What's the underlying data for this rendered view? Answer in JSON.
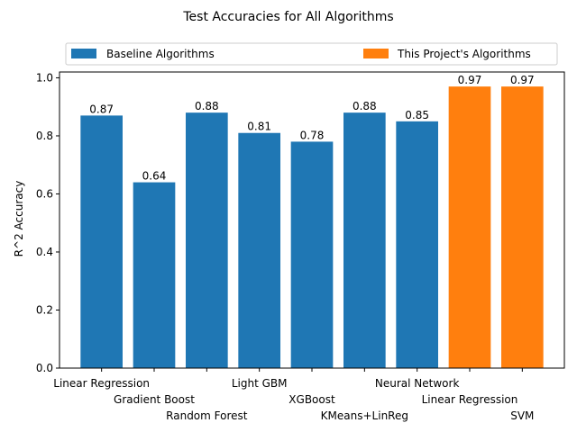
{
  "chart_data": {
    "type": "bar",
    "title": "Test Accuracies for All Algorithms",
    "xlabel": "",
    "ylabel": "R^2 Accuracy",
    "ylim": [
      0,
      1.02
    ],
    "yticks": [
      0.0,
      0.2,
      0.4,
      0.6,
      0.8,
      1.0
    ],
    "ytick_labels": [
      "0.0",
      "0.2",
      "0.4",
      "0.6",
      "0.8",
      "1.0"
    ],
    "grid": false,
    "legend_placement": "top, spanning full width",
    "legend": [
      {
        "label": "Baseline Algorithms",
        "color": "#1f77b4"
      },
      {
        "label": "This Project's Algorithms",
        "color": "#ff7f0e"
      }
    ],
    "categories": [
      "Linear Regression",
      "Gradient Boost",
      "Random Forest",
      "Light GBM",
      "XGBoost",
      "KMeans+LinReg",
      "Neural Network",
      "Linear Regression",
      "SVM"
    ],
    "values": [
      0.87,
      0.64,
      0.88,
      0.81,
      0.78,
      0.88,
      0.85,
      0.97,
      0.97
    ],
    "data_labels": [
      "0.87",
      "0.64",
      "0.88",
      "0.81",
      "0.78",
      "0.88",
      "0.85",
      "0.97",
      "0.97"
    ],
    "groups": [
      "baseline",
      "baseline",
      "baseline",
      "baseline",
      "baseline",
      "baseline",
      "baseline",
      "project",
      "project"
    ],
    "colors": {
      "baseline": "#1f77b4",
      "project": "#ff7f0e"
    }
  }
}
